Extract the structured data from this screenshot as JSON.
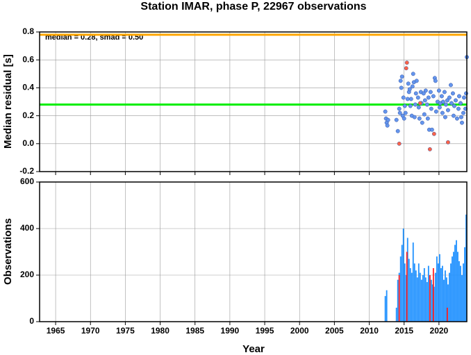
{
  "chart_data": [
    {
      "type": "scatter",
      "title": "Station IMAR, phase P, 22967 observations",
      "ylabel": "Median residual [s]",
      "annotation": "median = 0.28, smad = 0.50",
      "xlim": [
        1962.7,
        2024
      ],
      "ylim": [
        -0.2,
        0.8
      ],
      "xticks": [
        1965,
        1970,
        1975,
        1980,
        1985,
        1990,
        1995,
        2000,
        2005,
        2010,
        2015,
        2020
      ],
      "yticks": [
        -0.2,
        {
          "value": 0,
          "label": "0.0"
        },
        0.2,
        0.4,
        0.6,
        0.8
      ],
      "grid": true,
      "hlines": [
        {
          "value": 0.28,
          "color": "#00ee00"
        },
        {
          "value": 0.78,
          "color": "#ffa500"
        }
      ],
      "series": [
        {
          "color": "#6495ed",
          "x": [
            2012.3,
            2012.4,
            2012.5,
            2012.6,
            2012.7,
            2013.9,
            2014.1,
            2014.3,
            2014.4,
            2014.5,
            2014.6,
            2014.7,
            2014.8,
            2014.9,
            2015.0,
            2015.1,
            2015.2,
            2015.5,
            2015.6,
            2015.7,
            2015.8,
            2015.9,
            2016.0,
            2016.1,
            2016.2,
            2016.3,
            2016.4,
            2016.5,
            2016.6,
            2016.7,
            2016.8,
            2017.0,
            2017.1,
            2017.2,
            2017.4,
            2017.5,
            2017.6,
            2017.8,
            2017.9,
            2018.0,
            2018.1,
            2018.3,
            2018.4,
            2018.5,
            2018.6,
            2018.8,
            2018.9,
            2019.0,
            2019.2,
            2019.4,
            2019.5,
            2019.6,
            2019.8,
            2020.0,
            2020.1,
            2020.2,
            2020.4,
            2020.5,
            2020.6,
            2020.8,
            2020.9,
            2021.0,
            2021.2,
            2021.3,
            2021.5,
            2021.7,
            2021.8,
            2022.0,
            2022.1,
            2022.2,
            2022.4,
            2022.6,
            2022.8,
            2022.9,
            2023.1,
            2023.2,
            2023.3,
            2023.5,
            2023.6,
            2023.8,
            2023.9,
            2024.0
          ],
          "values": [
            0.23,
            0.18,
            0.15,
            0.13,
            0.17,
            0.17,
            0.09,
            0.25,
            0.22,
            0.45,
            0.4,
            0.48,
            0.2,
            0.33,
            0.18,
            0.27,
            0.22,
            0.32,
            0.43,
            0.37,
            0.39,
            0.27,
            0.32,
            0.2,
            0.41,
            0.5,
            0.44,
            0.19,
            0.28,
            0.36,
            0.45,
            0.33,
            0.26,
            0.18,
            0.37,
            0.29,
            0.15,
            0.36,
            0.21,
            0.31,
            0.38,
            0.28,
            0.18,
            0.33,
            0.1,
            0.37,
            0.25,
            0.1,
            0.34,
            0.47,
            0.45,
            0.23,
            0.3,
            0.38,
            0.26,
            0.29,
            0.34,
            0.22,
            0.3,
            0.37,
            0.19,
            0.28,
            0.31,
            0.24,
            0.33,
            0.42,
            0.29,
            0.36,
            0.2,
            0.27,
            0.31,
            0.18,
            0.25,
            0.34,
            0.29,
            0.19,
            0.15,
            0.22,
            0.33,
            0.25,
            0.36,
            0.62
          ]
        },
        {
          "color": "#ff6347",
          "x": [
            2014.3,
            2015.3,
            2015.4,
            2017.3,
            2018.7,
            2019.3,
            2021.3
          ],
          "values": [
            0.0,
            0.54,
            0.58,
            0.29,
            -0.04,
            0.07,
            0.01
          ]
        }
      ]
    },
    {
      "type": "bar",
      "xlabel": "Year",
      "ylabel": "Observations",
      "xlim": [
        1962.7,
        2024
      ],
      "ylim": [
        0,
        600
      ],
      "xticks": [
        1965,
        1970,
        1975,
        1980,
        1985,
        1990,
        1995,
        2000,
        2005,
        2010,
        2015,
        2020
      ],
      "yticks": [
        0,
        200,
        400,
        600
      ],
      "grid": true,
      "series": [
        {
          "color": "#1e90ff",
          "x": [
            2012.3,
            2012.5,
            2013.9,
            2014.1,
            2014.3,
            2014.5,
            2014.7,
            2014.9,
            2015.1,
            2015.3,
            2015.5,
            2015.7,
            2015.9,
            2016.1,
            2016.3,
            2016.5,
            2016.7,
            2016.9,
            2017.1,
            2017.3,
            2017.5,
            2017.7,
            2017.9,
            2018.1,
            2018.3,
            2018.5,
            2018.7,
            2018.9,
            2019.1,
            2019.3,
            2019.5,
            2019.7,
            2019.9,
            2020.1,
            2020.3,
            2020.5,
            2020.7,
            2020.9,
            2021.1,
            2021.3,
            2021.5,
            2021.7,
            2021.9,
            2022.1,
            2022.3,
            2022.5,
            2022.7,
            2022.9,
            2023.1,
            2023.3,
            2023.5,
            2023.7,
            2023.9
          ],
          "values": [
            110,
            135,
            60,
            180,
            210,
            280,
            330,
            400,
            250,
            200,
            360,
            270,
            230,
            210,
            340,
            250,
            220,
            190,
            250,
            210,
            180,
            200,
            230,
            190,
            170,
            240,
            200,
            180,
            160,
            150,
            210,
            280,
            250,
            290,
            230,
            240,
            180,
            220,
            190,
            160,
            210,
            250,
            280,
            300,
            330,
            350,
            300,
            260,
            240,
            200,
            250,
            320,
            460
          ]
        },
        {
          "color": "#ff2020",
          "x": [
            2014.3,
            2015.4,
            2018.7,
            2019.2,
            2021.2
          ],
          "values": [
            200,
            300,
            200,
            230,
            60
          ]
        }
      ]
    }
  ]
}
